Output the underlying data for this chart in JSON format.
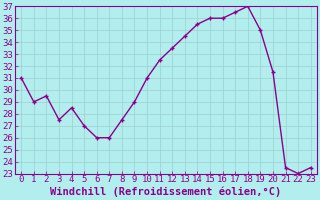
{
  "x": [
    0,
    1,
    2,
    3,
    4,
    5,
    6,
    7,
    8,
    9,
    10,
    11,
    12,
    13,
    14,
    15,
    16,
    17,
    18,
    19,
    20,
    21,
    22,
    23
  ],
  "y": [
    31.0,
    29.0,
    29.5,
    27.5,
    28.5,
    27.0,
    26.0,
    26.0,
    27.5,
    29.0,
    31.0,
    32.5,
    33.5,
    34.5,
    35.5,
    36.0,
    36.0,
    36.5,
    37.0,
    35.0,
    31.5,
    23.5,
    23.0,
    23.5
  ],
  "line_color": "#8B008B",
  "marker": "+",
  "marker_color": "#8B008B",
  "bg_color": "#b2eeee",
  "grid_color": "#9ecece",
  "xlabel": "Windchill (Refroidissement éolien,°C)",
  "xlim": [
    -0.5,
    23.5
  ],
  "ylim": [
    23,
    37
  ],
  "yticks": [
    23,
    24,
    25,
    26,
    27,
    28,
    29,
    30,
    31,
    32,
    33,
    34,
    35,
    36,
    37
  ],
  "xticks": [
    0,
    1,
    2,
    3,
    4,
    5,
    6,
    7,
    8,
    9,
    10,
    11,
    12,
    13,
    14,
    15,
    16,
    17,
    18,
    19,
    20,
    21,
    22,
    23
  ],
  "tick_color": "#8B008B",
  "spine_color": "#8B008B",
  "xlabel_color": "#8B008B",
  "xlabel_fontsize": 7.5,
  "tick_fontsize": 6.5,
  "linewidth": 1.0,
  "markersize": 3.5
}
